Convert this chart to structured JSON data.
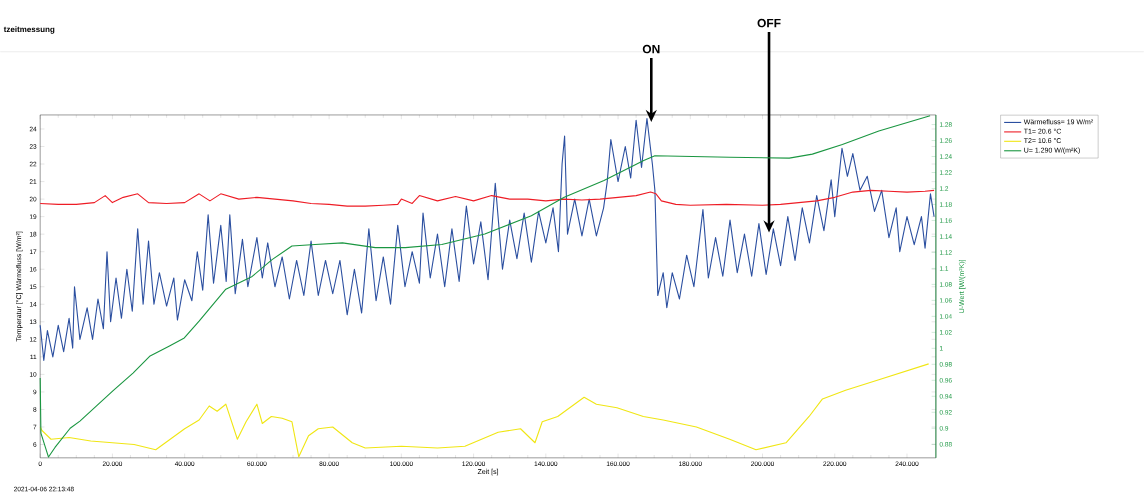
{
  "chart_data": {
    "type": "line",
    "title": "tzeitmessung",
    "xlabel": "Zeit [s]",
    "ylabel": "Temperatur [°C] Wärmefluss [W/m²]",
    "y2label": "U-Wert [W/(m²K)]",
    "xlim": [
      0,
      248
    ],
    "ylim": [
      5.24,
      24.8
    ],
    "y2lim": [
      0.863,
      1.292
    ],
    "xticks": [
      0,
      {
        "value": 20,
        "label": "20.000"
      },
      {
        "value": 40,
        "label": "40.000"
      },
      {
        "value": 60,
        "label": "60.000"
      },
      {
        "value": 80,
        "label": "80.000"
      },
      {
        "value": 100,
        "label": "100.000"
      },
      {
        "value": 120,
        "label": "120.000"
      },
      {
        "value": 140,
        "label": "140.000"
      },
      {
        "value": 160,
        "label": "160.000"
      },
      {
        "value": 180,
        "label": "180.000"
      },
      {
        "value": 200,
        "label": "200.000"
      },
      {
        "value": 220,
        "label": "220.000"
      },
      {
        "value": 240,
        "label": "240.000"
      }
    ],
    "yticks": [
      6,
      7,
      8,
      9,
      10,
      11,
      12,
      13,
      14,
      15,
      16,
      17,
      18,
      19,
      20,
      21,
      22,
      23,
      24
    ],
    "y2ticks": [
      0.88,
      0.9,
      0.92,
      0.94,
      0.96,
      0.98,
      1,
      1.02,
      1.04,
      1.06,
      1.08,
      1.1,
      1.12,
      1.14,
      1.16,
      1.18,
      1.2,
      1.22,
      1.24,
      1.26,
      1.28
    ],
    "legend": "top right",
    "marker": "none",
    "line_style": "solid",
    "grid": false,
    "annotations": [
      {
        "text": "ON",
        "x": 169.2,
        "y": 24.4
      },
      {
        "text": "OFF",
        "x": 201.8,
        "y": 18.1
      },
      "2021-04-06 22:13:48"
    ],
    "series": [
      {
        "name": "Wärmefluss= 19 W/m²",
        "color": "#2b4fa0",
        "x": [
          0,
          1,
          2,
          3.5,
          5,
          6.5,
          8,
          9,
          9.5,
          11,
          13,
          14.5,
          16,
          17.5,
          18.5,
          19.5,
          21,
          22.5,
          24,
          25.5,
          27,
          28.5,
          30,
          31.5,
          33,
          35,
          37,
          38,
          40,
          42,
          43.5,
          45,
          46.5,
          48,
          50,
          51.5,
          52.5,
          54,
          56,
          57.5,
          60,
          61.5,
          63,
          65,
          67,
          69,
          71,
          73,
          75,
          77,
          79,
          81,
          83,
          85,
          87,
          89,
          91,
          93,
          95,
          97,
          99,
          101,
          103,
          105,
          106,
          108,
          110,
          112,
          114,
          116,
          118,
          120,
          122,
          124,
          126,
          128,
          130,
          132,
          134,
          136,
          138,
          140,
          142,
          143.5,
          144.5,
          145.2,
          146,
          148,
          150,
          152,
          154,
          156,
          157,
          158,
          160,
          162,
          163.5,
          165,
          166.5,
          168,
          169.5,
          170.2,
          171,
          172.5,
          173.5,
          175,
          177,
          179,
          181,
          183.5,
          185,
          187,
          189,
          191,
          193,
          195,
          197,
          199,
          201,
          203,
          205,
          207,
          209,
          211,
          213,
          215,
          217,
          219,
          220,
          222,
          223.5,
          225,
          227,
          229,
          231,
          233,
          235,
          237,
          238,
          240,
          242,
          244,
          245,
          246.5,
          247.5
        ],
        "values": [
          12.8,
          10.8,
          12.5,
          11.0,
          12.8,
          11.3,
          13.2,
          11.5,
          15.0,
          12.0,
          13.8,
          12.0,
          14.3,
          12.6,
          17.0,
          13.0,
          15.5,
          13.2,
          16.0,
          13.6,
          18.3,
          14.0,
          17.6,
          14.0,
          15.8,
          13.9,
          15.5,
          13.1,
          15.4,
          14.2,
          17.0,
          14.8,
          19.1,
          15.2,
          18.5,
          15.3,
          19.1,
          14.6,
          17.7,
          15.0,
          17.8,
          15.5,
          17.5,
          15.0,
          16.7,
          14.3,
          16.5,
          14.5,
          17.6,
          14.5,
          16.5,
          14.6,
          16.5,
          13.4,
          16.0,
          13.5,
          18.3,
          14.2,
          16.7,
          14.0,
          18.5,
          15.0,
          17.0,
          15.2,
          19.2,
          15.5,
          18.0,
          15.0,
          18.3,
          15.3,
          19.6,
          16.3,
          18.7,
          15.4,
          20.9,
          16.0,
          18.8,
          16.6,
          19.2,
          16.4,
          19.3,
          17.5,
          19.5,
          17.0,
          22.0,
          23.6,
          18.0,
          20.0,
          17.9,
          20.0,
          17.9,
          19.5,
          21.0,
          23.4,
          21.0,
          23.0,
          21.2,
          24.5,
          21.8,
          24.6,
          22.0,
          20.5,
          14.5,
          15.8,
          13.8,
          15.8,
          14.3,
          16.8,
          15.0,
          19.4,
          15.5,
          17.8,
          15.6,
          18.8,
          15.8,
          18.0,
          15.6,
          18.6,
          15.7,
          18.3,
          16.2,
          19.0,
          16.5,
          19.5,
          17.5,
          20.2,
          18.2,
          21.1,
          19.0,
          22.9,
          21.3,
          22.6,
          20.5,
          21.3,
          19.3,
          20.5,
          17.8,
          19.5,
          17.0,
          19.0,
          17.4,
          19.0,
          17.2,
          20.3,
          19.0
        ]
      },
      {
        "name": "T1= 20.6 °C",
        "color": "#ee1c25",
        "x": [
          0,
          5,
          10,
          15,
          18,
          20,
          23,
          27,
          30,
          35,
          40,
          44,
          47,
          50,
          55,
          60,
          65,
          70,
          75,
          80,
          85,
          90,
          95,
          99,
          100,
          103,
          105,
          110,
          115,
          120,
          125,
          130,
          135,
          140,
          145,
          150,
          155,
          160,
          165,
          169,
          170.5,
          172,
          176,
          180,
          190,
          200,
          205,
          210,
          215,
          220,
          225,
          230,
          235,
          240,
          245,
          247.5
        ],
        "values": [
          19.75,
          19.7,
          19.7,
          19.8,
          20.2,
          19.8,
          20.1,
          20.3,
          19.8,
          19.75,
          19.8,
          20.3,
          19.9,
          20.3,
          20.0,
          20.1,
          20.0,
          19.9,
          19.75,
          19.7,
          19.6,
          19.6,
          19.65,
          19.7,
          20.0,
          19.75,
          20.2,
          19.9,
          20.15,
          19.9,
          20.2,
          20.0,
          20.0,
          19.9,
          20.0,
          19.95,
          20.0,
          20.1,
          20.2,
          20.4,
          20.3,
          19.9,
          19.7,
          19.65,
          19.7,
          19.65,
          19.7,
          19.8,
          19.9,
          20.1,
          20.4,
          20.5,
          20.45,
          20.4,
          20.45,
          20.5
        ]
      },
      {
        "name": "T2= 10.6 °C",
        "color": "#f0e614",
        "x": [
          0,
          0.5,
          3,
          8,
          14,
          20,
          26,
          32,
          36,
          40,
          44,
          46.8,
          49,
          51.4,
          54.6,
          57,
          60,
          61.5,
          64,
          67,
          69.7,
          71.6,
          74.3,
          77,
          81,
          86.4,
          90,
          100,
          110,
          117.6,
          126.8,
          133,
          137,
          139,
          143.3,
          150.6,
          154,
          159.7,
          167,
          172.5,
          181.7,
          190.9,
          198.2,
          206.5,
          212.9,
          216.6,
          223,
          232.2,
          246
        ],
        "values": [
          7.0,
          6.8,
          6.3,
          6.4,
          6.2,
          6.1,
          6.0,
          5.7,
          6.3,
          6.9,
          7.4,
          8.2,
          7.9,
          8.3,
          6.3,
          7.3,
          8.3,
          7.2,
          7.6,
          7.5,
          7.3,
          5.3,
          6.5,
          6.9,
          7.0,
          6.1,
          5.8,
          5.9,
          5.8,
          5.9,
          6.7,
          6.9,
          6.1,
          7.3,
          7.6,
          8.7,
          8.3,
          8.1,
          7.6,
          7.4,
          7.0,
          6.3,
          5.7,
          6.1,
          7.6,
          8.6,
          9.1,
          9.7,
          10.6
        ]
      },
      {
        "name": "U= 1.290 W/(m²K)",
        "color": "#1a9641",
        "axis": "y2",
        "x": [
          0,
          0.2,
          2.3,
          4.1,
          8.3,
          11,
          15.6,
          20.2,
          25.7,
          30.3,
          35.8,
          39.9,
          44,
          51.4,
          58.7,
          64.2,
          69.7,
          76.1,
          83.7,
          92.8,
          101.1,
          111.2,
          123.1,
          136,
          145.1,
          156.1,
          167.1,
          170.2,
          190.9,
          207.4,
          213.8,
          222.1,
          232.2,
          246.4
        ],
        "values": [
          0.963,
          0.894,
          0.864,
          0.876,
          0.9,
          0.909,
          0.928,
          0.947,
          0.969,
          0.99,
          1.003,
          1.013,
          1.034,
          1.074,
          1.09,
          1.111,
          1.128,
          1.13,
          1.132,
          1.126,
          1.126,
          1.13,
          1.143,
          1.166,
          1.189,
          1.21,
          1.235,
          1.241,
          1.239,
          1.238,
          1.243,
          1.255,
          1.272,
          1.291
        ]
      }
    ]
  }
}
